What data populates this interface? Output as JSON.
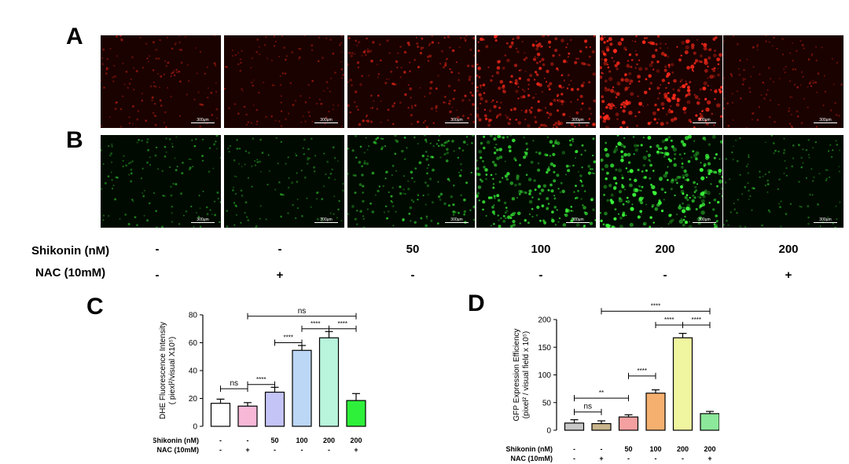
{
  "panels": {
    "a": "A",
    "b": "B",
    "c": "C",
    "d": "D"
  },
  "scale_bar": "300μm",
  "conditions": {
    "shikonin_label": "Shikonin (nM)",
    "nac_label": "NAC (10mM)",
    "shikonin": [
      "-",
      "-",
      "50",
      "100",
      "200",
      "200"
    ],
    "nac": [
      "-",
      "+",
      "-",
      "-",
      "-",
      "+"
    ]
  },
  "colors": {
    "red_channel": "#ff2a1a",
    "green_channel": "#3cff3c"
  },
  "micro_brightness": [
    0.35,
    0.3,
    0.55,
    0.8,
    1.0,
    0.3
  ],
  "chart_data": [
    {
      "type": "bar",
      "panel": "C",
      "ylabel_line1": "DHE Fluorescence Intensity",
      "ylabel_line2": "( piexl²/visual X10⁵)",
      "ylim": [
        0,
        80
      ],
      "yticks": [
        0,
        20,
        40,
        60,
        80
      ],
      "row1_label": "Shikonin (nM)",
      "row2_label": "NAC  (10mM)",
      "row1": [
        "-",
        "-",
        "50",
        "100",
        "200",
        "200"
      ],
      "row2": [
        "-",
        "+",
        "-",
        "-",
        "-",
        "+"
      ],
      "values": [
        16.5,
        14.5,
        24.5,
        54.5,
        63.5,
        18.5
      ],
      "errors": [
        3,
        2.5,
        3.5,
        3.5,
        4.5,
        5
      ],
      "colors": [
        "#ffffff",
        "#f7b8d8",
        "#c4c4f7",
        "#bcd6f5",
        "#b8f5dc",
        "#2ef03a"
      ],
      "significance": [
        {
          "from": 0,
          "to": 1,
          "y": 27,
          "label": "ns"
        },
        {
          "from": 1,
          "to": 2,
          "y": 30,
          "label": "****"
        },
        {
          "from": 2,
          "to": 3,
          "y": 60,
          "label": "****"
        },
        {
          "from": 3,
          "to": 4,
          "y": 70,
          "label": "****"
        },
        {
          "from": 4,
          "to": 5,
          "y": 70,
          "label": "****"
        },
        {
          "from": 1,
          "to": 5,
          "y": 79,
          "label": "ns"
        }
      ]
    },
    {
      "type": "bar",
      "panel": "D",
      "ylabel_line1": "GFP Expression Efficiency",
      "ylabel_line2": "(pixel² / visual field x 10⁵)",
      "ylim": [
        0,
        200
      ],
      "yticks": [
        0,
        50,
        100,
        150,
        200
      ],
      "row1_label": "Shikonin (nM)",
      "row2_label": "NAC  (10mM)",
      "row1": [
        "-",
        "-",
        "50",
        "100",
        "200",
        "200"
      ],
      "row2": [
        "-",
        "+",
        "-",
        "-",
        "-",
        "+"
      ],
      "values": [
        13,
        12,
        24,
        67,
        167,
        30
      ],
      "errors": [
        6,
        5,
        4,
        6,
        8,
        4
      ],
      "colors": [
        "#c8c8c8",
        "#c8b48c",
        "#f5a0a0",
        "#f5b070",
        "#f0f5a0",
        "#8ce89a"
      ],
      "significance": [
        {
          "from": 0,
          "to": 1,
          "y": 33,
          "label": "ns"
        },
        {
          "from": 0,
          "to": 2,
          "y": 58,
          "label": "**"
        },
        {
          "from": 2,
          "to": 3,
          "y": 98,
          "label": "****"
        },
        {
          "from": 3,
          "to": 4,
          "y": 190,
          "label": "****"
        },
        {
          "from": 4,
          "to": 5,
          "y": 190,
          "label": "****"
        },
        {
          "from": 1,
          "to": 5,
          "y": 215,
          "label": "****"
        }
      ]
    }
  ]
}
